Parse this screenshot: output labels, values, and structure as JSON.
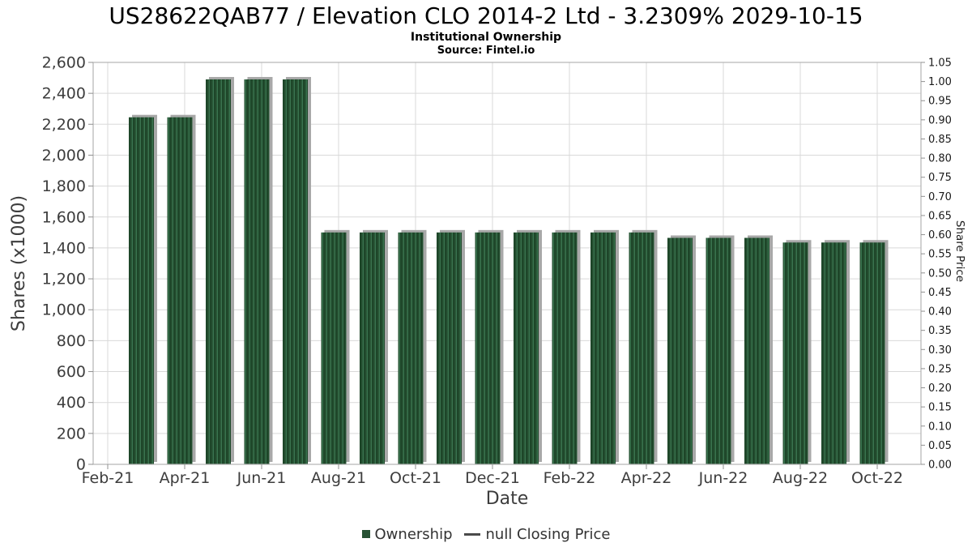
{
  "title": "US28622QAB77 / Elevation CLO 2014-2 Ltd - 3.2309% 2029-10-15",
  "subtitle": "Institutional Ownership",
  "source": "Source: Fintel.io",
  "legend": {
    "ownership_label": "Ownership",
    "price_label": "null Closing Price"
  },
  "colors": {
    "bar_base": "#2b5a39",
    "bar_dark": "#1e4629",
    "bar_light": "#3a7450",
    "legend_square": "#275234",
    "shadow": "#a8a8a8",
    "grid": "#d9d9d9",
    "plot_border": "#b3b3b3",
    "axis_tick": "#909090",
    "label_text": "#3d3d3d"
  },
  "chart_data": {
    "type": "bar",
    "title": "US28622QAB77 / Elevation CLO 2014-2 Ltd - 3.2309% 2029-10-15",
    "subtitle": "Institutional Ownership",
    "source": "Source: Fintel.io",
    "xlabel": "Date",
    "ylabel_left": "Shares (x1000)",
    "ylabel_right": "Share Price",
    "legend_position": "bottom",
    "grid": true,
    "categories": [
      "Feb-21",
      "Mar-21",
      "Apr-21",
      "May-21",
      "Jun-21",
      "Jul-21",
      "Aug-21",
      "Sep-21",
      "Oct-21",
      "Nov-21",
      "Dec-21",
      "Jan-22",
      "Feb-22",
      "Mar-22",
      "Apr-22",
      "May-22",
      "Jun-22",
      "Jul-22",
      "Aug-22",
      "Sep-22",
      "Oct-22"
    ],
    "series": [
      {
        "name": "Ownership",
        "unit": "shares x1000",
        "values": [
          null,
          2245,
          2245,
          2490,
          2490,
          2490,
          1500,
          1500,
          1500,
          1500,
          1500,
          1500,
          1500,
          1500,
          1500,
          1465,
          1465,
          1465,
          1435,
          1435,
          1435
        ]
      },
      {
        "name": "null Closing Price",
        "unit": "share price",
        "values": []
      }
    ],
    "x_tick_labels": [
      "Feb-21",
      "Apr-21",
      "Jun-21",
      "Aug-21",
      "Oct-21",
      "Dec-21",
      "Feb-22",
      "Apr-22",
      "Jun-22",
      "Aug-22",
      "Oct-22"
    ],
    "ylim_left": [
      0,
      2600
    ],
    "ytick_step_left": 200,
    "ylim_right": [
      0,
      1.05
    ],
    "ytick_step_right": 0.05
  }
}
